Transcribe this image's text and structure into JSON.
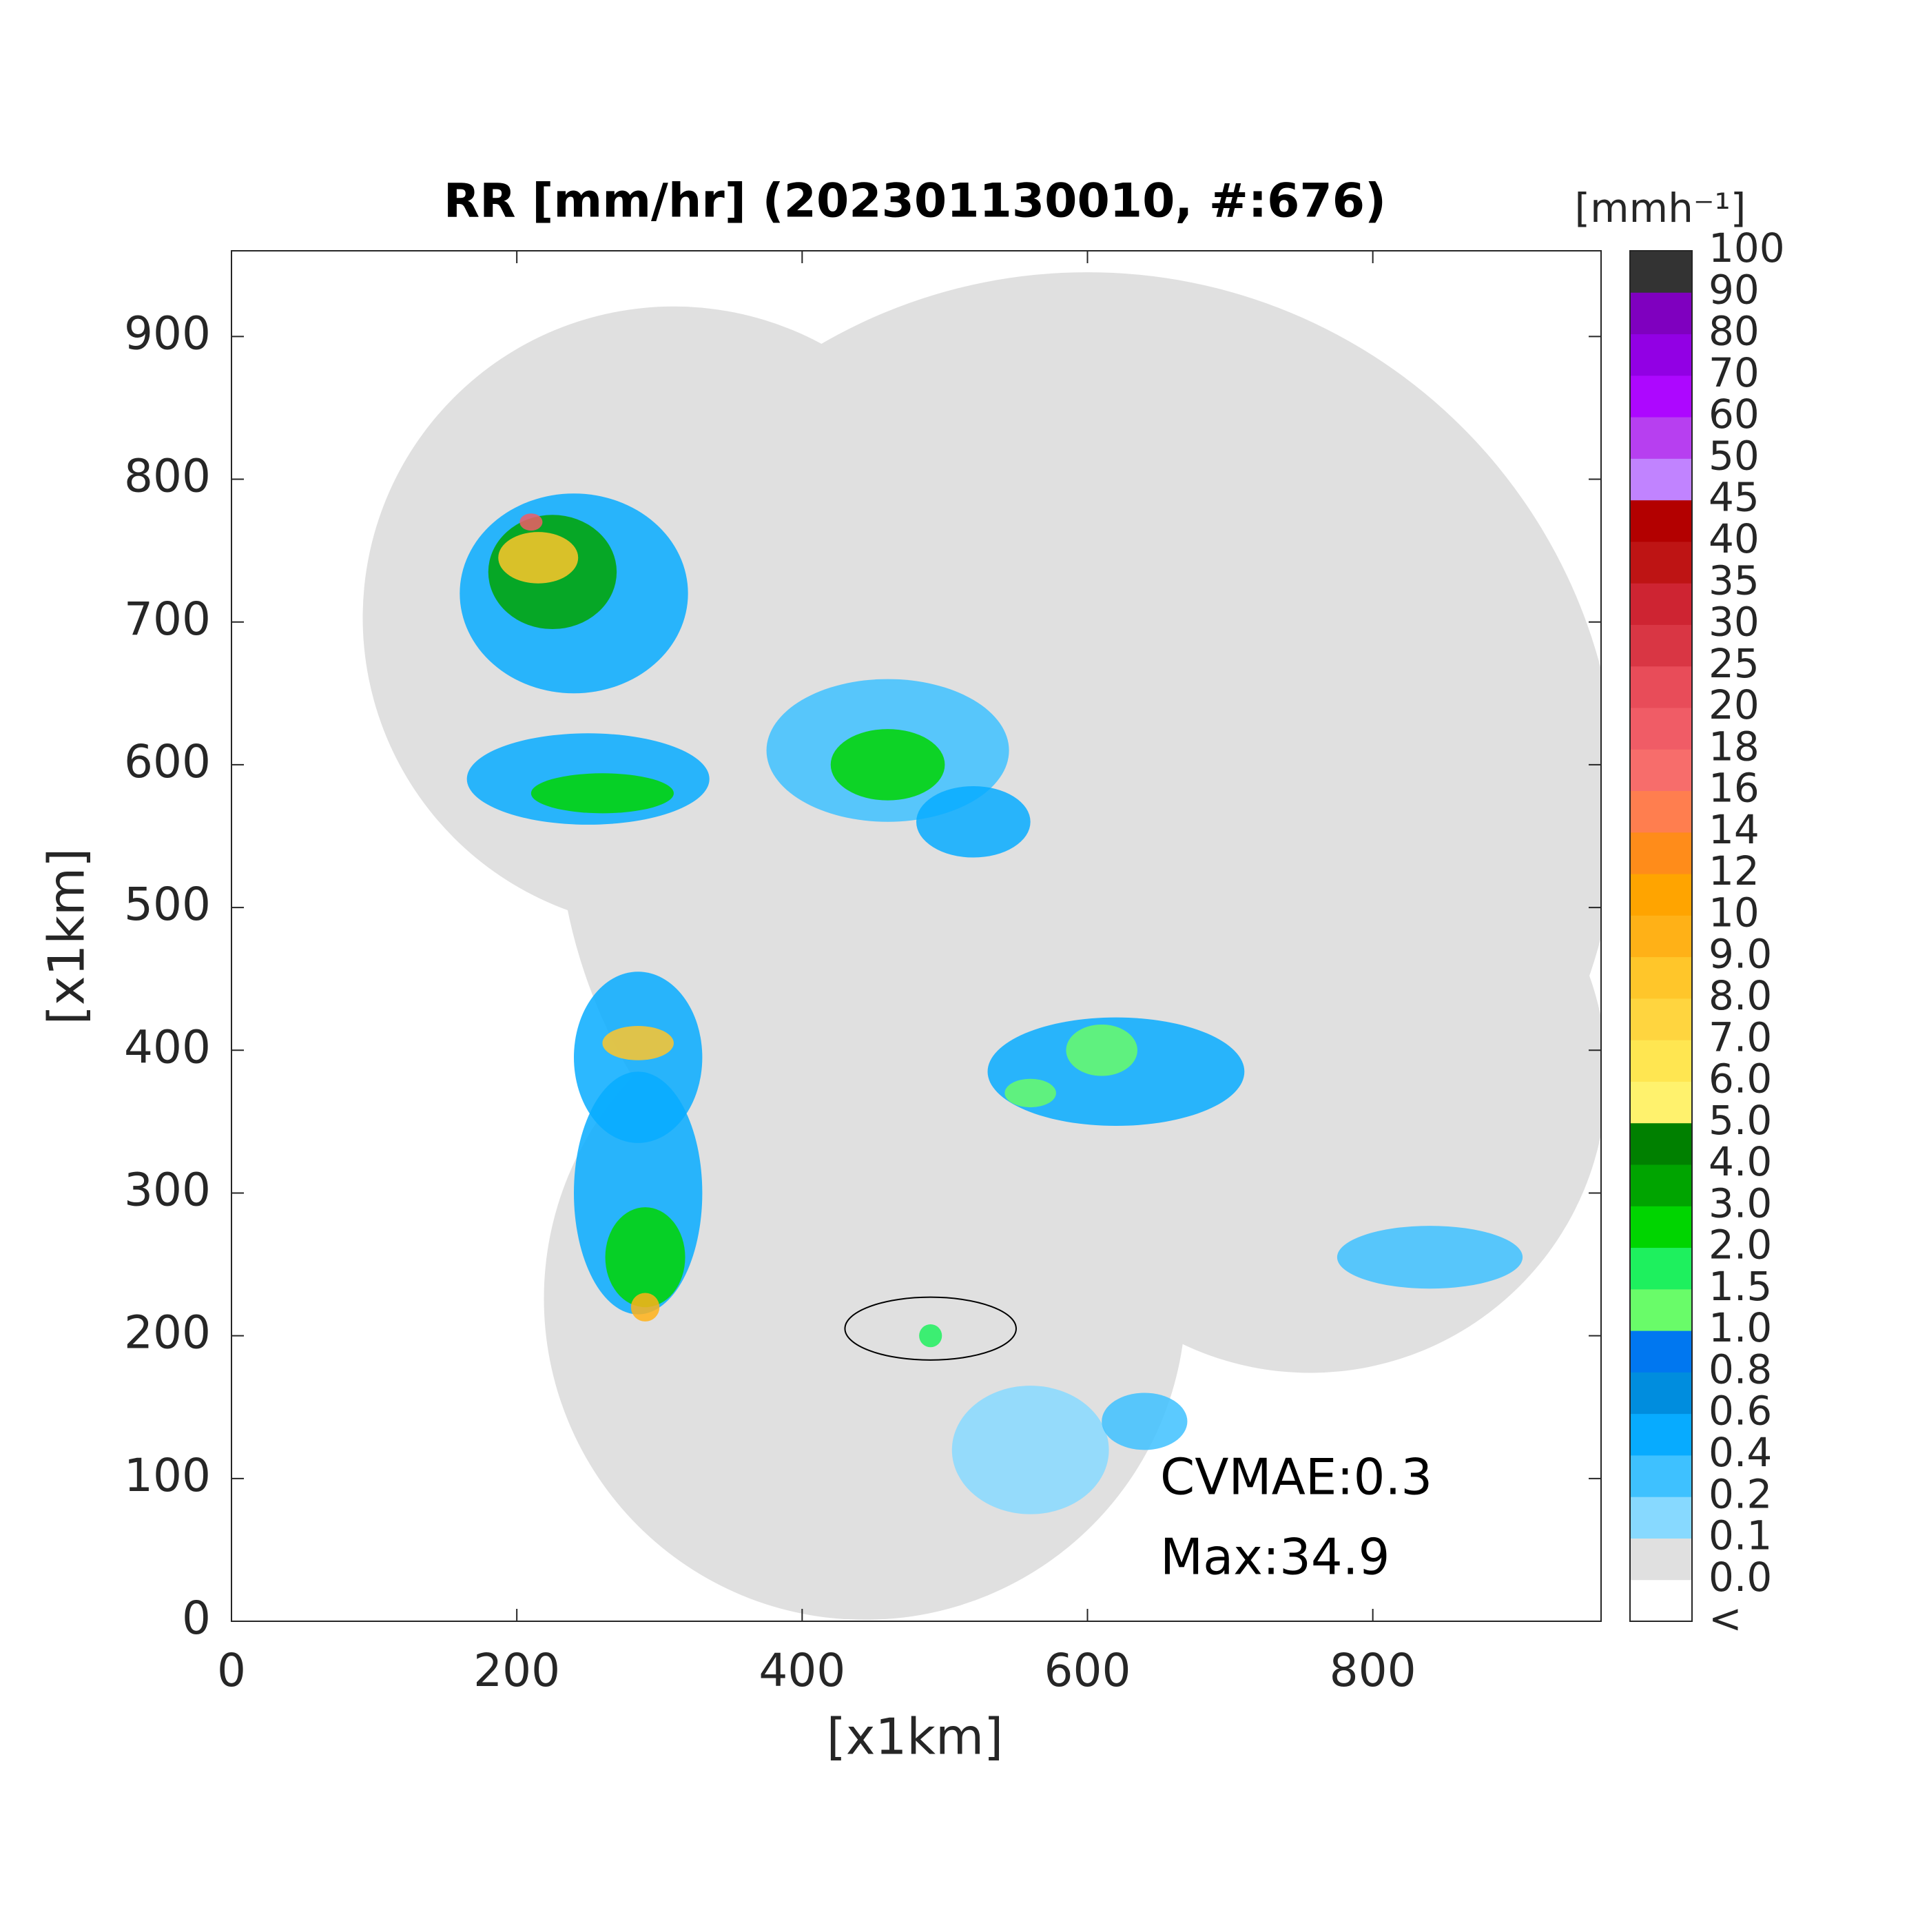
{
  "chart_data": {
    "type": "heatmap",
    "title": "RR [mm/hr] (202301130010, #:676)",
    "xlabel": "[x1km]",
    "ylabel": "[x1km]",
    "xlim": [
      0,
      960
    ],
    "ylim": [
      0,
      960
    ],
    "xticks": [
      0,
      200,
      400,
      600,
      800
    ],
    "yticks": [
      0,
      100,
      200,
      300,
      400,
      500,
      600,
      700,
      800,
      900
    ],
    "colorbar": {
      "unit": "[mmh⁻¹]",
      "labels": [
        "<",
        "0.0",
        "0.1",
        "0.2",
        "0.4",
        "0.6",
        "0.8",
        "1.0",
        "1.5",
        "2.0",
        "3.0",
        "4.0",
        "5.0",
        "6.0",
        "7.0",
        "8.0",
        "9.0",
        "10",
        "12",
        "14",
        "16",
        "18",
        "20",
        "25",
        "30",
        "35",
        "40",
        "45",
        "50",
        "60",
        "70",
        "80",
        "90",
        "100"
      ],
      "colors": [
        "#ffffff",
        "#e0e0e0",
        "#87d9ff",
        "#3ec1ff",
        "#07abff",
        "#008dde",
        "#0077f0",
        "#69fc69",
        "#1ef05e",
        "#00d500",
        "#00a400",
        "#008000",
        "#fff26d",
        "#ffe651",
        "#ffd53f",
        "#ffc62a",
        "#ffb117",
        "#ffa400",
        "#ff8c1a",
        "#ff7e4f",
        "#f76d6b",
        "#f05c66",
        "#e84c59",
        "#d93644",
        "#ce2432",
        "#be1414",
        "#b30000",
        "#c183ff",
        "#b73ff0",
        "#ad07ff",
        "#9200e4",
        "#7f00bf",
        "#333333"
      ]
    },
    "annotations": [
      "CVMAE:0.3",
      "Max:34.9"
    ]
  }
}
